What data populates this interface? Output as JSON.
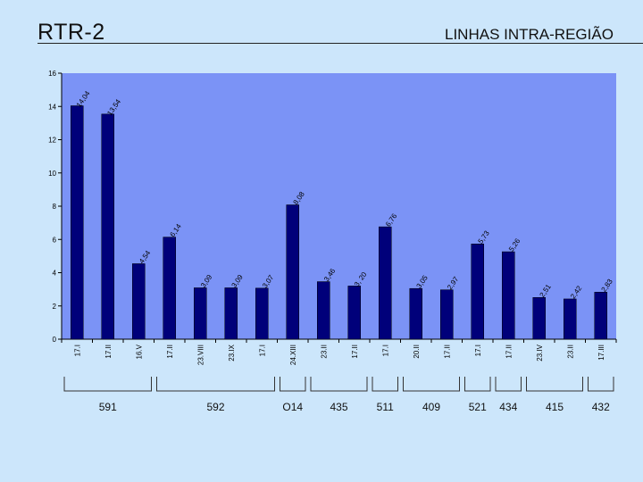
{
  "slide": {
    "title": "RTR-2",
    "subtitle": "LINHAS INTRA-REGIÃO"
  },
  "colors": {
    "background": "#cce6fb",
    "plot_area": "#7b93f6",
    "bar": "#00007a"
  },
  "chart_data": {
    "type": "bar",
    "categories": [
      "17.I",
      "17.II",
      "16.V",
      "17.II",
      "23.VIII",
      "23.IX",
      "17.I",
      "24.XIII",
      "23.II",
      "17.II",
      "17.I",
      "20.II",
      "17.II",
      "17.I",
      "17.II",
      "23.IV",
      "23.II",
      "17.III"
    ],
    "values": [
      14.04,
      13.54,
      4.54,
      6.14,
      3.09,
      3.09,
      3.07,
      8.08,
      3.46,
      3.2,
      6.76,
      3.05,
      2.97,
      5.73,
      5.26,
      2.51,
      2.42,
      2.83
    ],
    "data_labels": [
      "14,04",
      "13,54",
      "4,54",
      "6,14",
      "3,09",
      "3,09",
      "3,07",
      "8,08",
      "3,46",
      "3, 20",
      "6,76",
      "3,05",
      "2,97",
      "5,73",
      "5,26",
      "2,51",
      "2,42",
      "2,83"
    ],
    "y_ticks": [
      "0",
      "2",
      "4",
      "6",
      "8",
      "10",
      "12",
      "14",
      "16"
    ],
    "ylim": [
      0,
      16
    ],
    "grid": false,
    "legend": "none",
    "groups": [
      {
        "label": "591",
        "from": 0,
        "to": 2
      },
      {
        "label": "592",
        "from": 3,
        "to": 6
      },
      {
        "label": "O14",
        "from": 7,
        "to": 7
      },
      {
        "label": "435",
        "from": 8,
        "to": 9
      },
      {
        "label": "511",
        "from": 10,
        "to": 10
      },
      {
        "label": "409",
        "from": 11,
        "to": 12
      },
      {
        "label": "521",
        "from": 13,
        "to": 13
      },
      {
        "label": "434",
        "from": 14,
        "to": 14
      },
      {
        "label": "415",
        "from": 15,
        "to": 16
      },
      {
        "label": "432",
        "from": 17,
        "to": 17
      }
    ]
  }
}
